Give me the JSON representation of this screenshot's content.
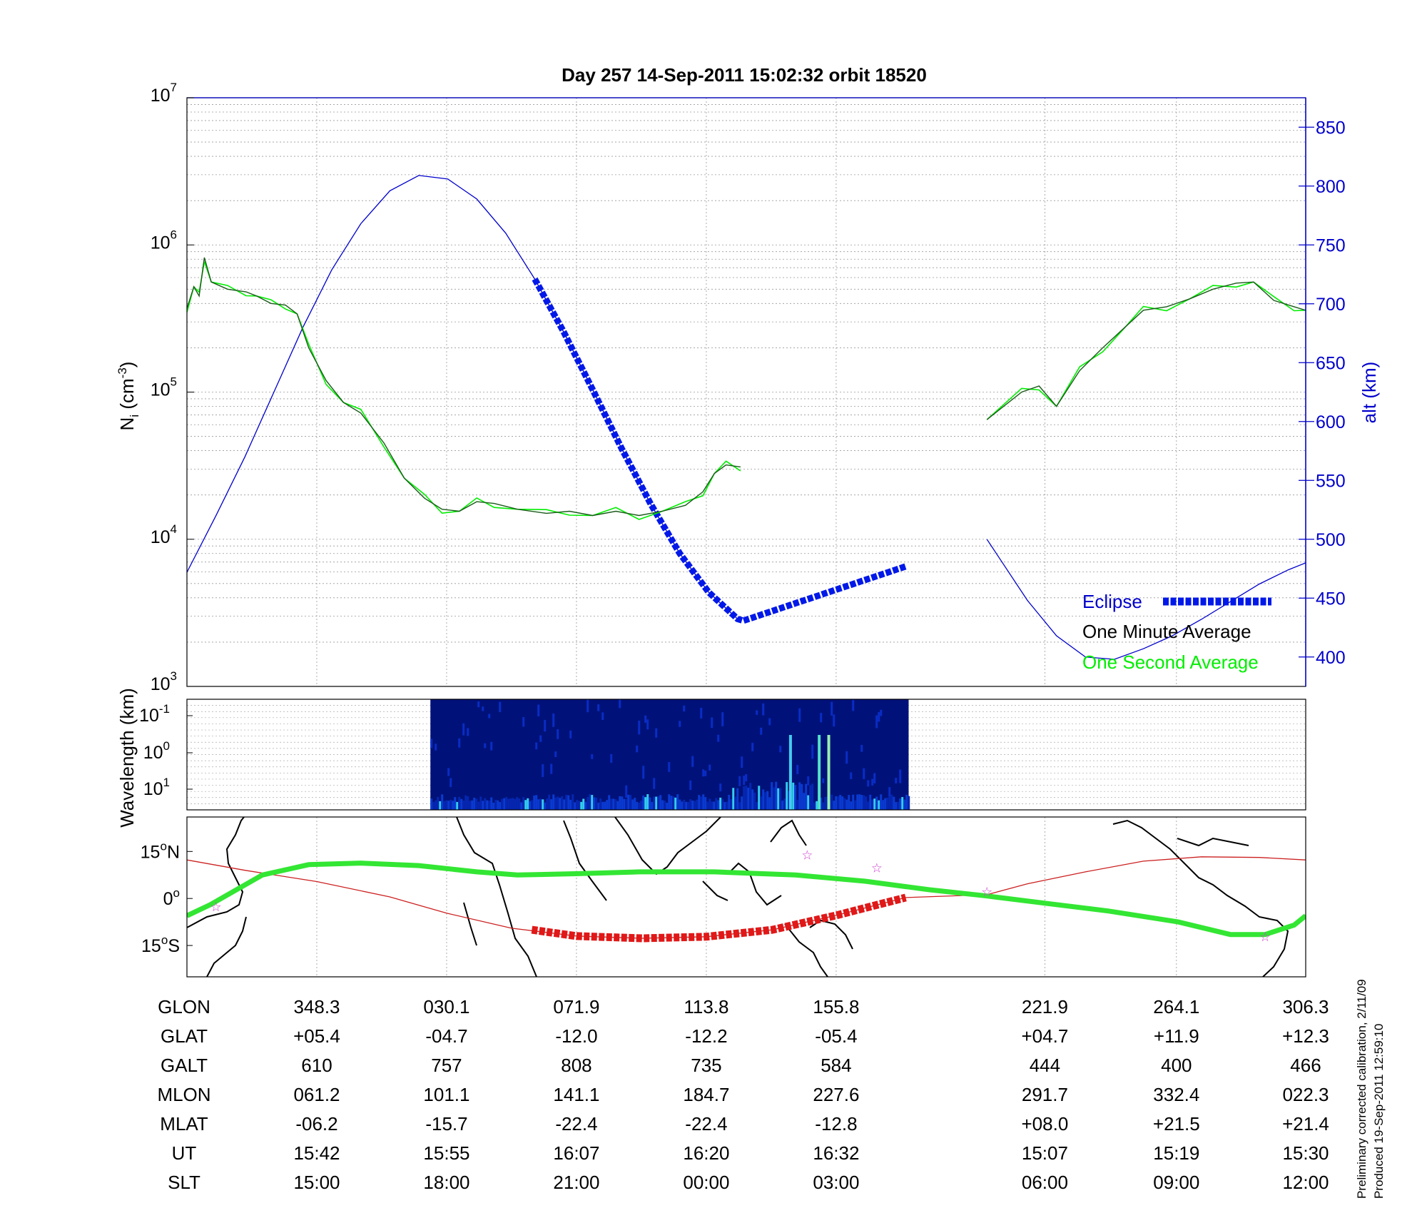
{
  "title": "Day 257  14-Sep-2011 15:02:32   orbit 18520",
  "colors": {
    "altitude": "#0000cc",
    "one_minute": "#1a5a1a",
    "one_second": "#00ee00",
    "eclipse": "#0018e8",
    "ground_track": "#cc2020",
    "magnetic_equator": "#33e633",
    "stars": "#cc44cc"
  },
  "chart_data": [
    {
      "id": "density_altitude",
      "type": "line",
      "ylabel_left": {
        "base": "N",
        "sub": "i",
        "rest": " (cm",
        "sup": "-3",
        "close": ")"
      },
      "ylabel_right": "alt (km)",
      "y_left_scale": "log",
      "y_left_ticks": [
        {
          "base": "10",
          "exp": "3"
        },
        {
          "base": "10",
          "exp": "4"
        },
        {
          "base": "10",
          "exp": "5"
        },
        {
          "base": "10",
          "exp": "6"
        },
        {
          "base": "10",
          "exp": "7"
        }
      ],
      "ylim_left": [
        1000,
        10000000
      ],
      "ylim_right": [
        375,
        875
      ],
      "y_right_ticks": [
        "400",
        "450",
        "500",
        "550",
        "600",
        "650",
        "700",
        "750",
        "800",
        "850"
      ],
      "grid": true,
      "x_gap": [
        15.93,
        15.99
      ],
      "series": [
        {
          "name": "One Minute Average",
          "kind": "density",
          "points": [
            [
              0.0,
              370000
            ],
            [
              0.12,
              520000
            ],
            [
              0.21,
              450000
            ],
            [
              0.3,
              820000
            ],
            [
              0.42,
              560000
            ],
            [
              0.7,
              500000
            ],
            [
              1.02,
              480000
            ],
            [
              1.2,
              450000
            ],
            [
              1.45,
              400000
            ],
            [
              1.7,
              390000
            ],
            [
              1.9,
              340000
            ],
            [
              2.1,
              200000
            ],
            [
              2.4,
              120000
            ],
            [
              2.7,
              85000
            ],
            [
              3.0,
              72000
            ],
            [
              3.4,
              45000
            ],
            [
              3.75,
              26000
            ],
            [
              4.1,
              19000
            ],
            [
              4.4,
              16000
            ],
            [
              4.7,
              15500
            ],
            [
              5.0,
              18000
            ],
            [
              5.3,
              17500
            ],
            [
              5.7,
              16000
            ],
            [
              6.2,
              15000
            ],
            [
              6.6,
              15500
            ],
            [
              7.0,
              14500
            ],
            [
              7.4,
              15500
            ],
            [
              7.8,
              14500
            ],
            [
              8.2,
              15500
            ],
            [
              8.6,
              17000
            ],
            [
              8.9,
              21000
            ],
            [
              9.1,
              28000
            ],
            [
              9.3,
              32000
            ],
            [
              9.55,
              31000
            ],
            [
              13.8,
              65000
            ],
            [
              14.4,
              100000
            ],
            [
              14.7,
              110000
            ],
            [
              15.0,
              80000
            ],
            [
              15.4,
              140000
            ],
            [
              15.8,
              200000
            ],
            [
              16.2,
              280000
            ],
            [
              16.5,
              360000
            ],
            [
              16.9,
              380000
            ],
            [
              17.3,
              430000
            ],
            [
              17.7,
              500000
            ],
            [
              18.1,
              550000
            ],
            [
              18.4,
              560000
            ],
            [
              18.75,
              420000
            ],
            [
              19.1,
              380000
            ],
            [
              19.3,
              360000
            ]
          ]
        },
        {
          "name": "Altitude",
          "kind": "altitude",
          "points": [
            [
              0.0,
              472
            ],
            [
              0.5,
              520
            ],
            [
              1.0,
              570
            ],
            [
              1.5,
              625
            ],
            [
              2.0,
              680
            ],
            [
              2.5,
              729
            ],
            [
              3.0,
              768
            ],
            [
              3.5,
              796
            ],
            [
              4.0,
              809
            ],
            [
              4.5,
              806
            ],
            [
              5.0,
              789
            ],
            [
              5.5,
              760
            ],
            [
              6.0,
              721
            ],
            [
              6.5,
              676
            ],
            [
              7.0,
              627
            ],
            [
              7.5,
              577
            ],
            [
              8.0,
              530
            ],
            [
              8.5,
              488
            ],
            [
              9.0,
              455
            ],
            [
              9.55,
              430
            ],
            [
              13.8,
              500
            ],
            [
              14.5,
              448
            ],
            [
              15.0,
              418
            ],
            [
              15.5,
              400
            ],
            [
              16.0,
              398
            ],
            [
              16.5,
              407
            ],
            [
              17.0,
              418
            ],
            [
              17.5,
              432
            ],
            [
              18.0,
              447
            ],
            [
              18.5,
              462
            ],
            [
              19.0,
              474
            ],
            [
              19.3,
              480
            ]
          ]
        }
      ],
      "eclipse_range": [
        5.95,
        12.45
      ],
      "legend": {
        "eclipse": "Eclipse",
        "one_minute": "One Minute Average",
        "one_second": "One Second Average",
        "placement": "bottom-right"
      }
    },
    {
      "id": "wavelength_spectrogram",
      "type": "heatmap",
      "ylabel": "Wavelength (km)",
      "y_ticks": [
        {
          "base": "10",
          "exp": "-1"
        },
        {
          "base": "10",
          "exp": "0"
        },
        {
          "base": "10",
          "exp": "1"
        }
      ],
      "data_range": [
        4.2,
        12.45
      ]
    },
    {
      "id": "ground_track_map",
      "type": "line",
      "y_ticks": [
        {
          "base": "15",
          "deg": "o",
          "suffix": "N"
        },
        {
          "base": "0",
          "deg": "o",
          "suffix": ""
        },
        {
          "base": "15",
          "deg": "o",
          "suffix": "S"
        }
      ],
      "ylim": [
        -25,
        26
      ],
      "series": [
        {
          "name": "ground track",
          "points": [
            [
              0.0,
              12.3
            ],
            [
              1.0,
              9.0
            ],
            [
              2.24,
              5.4
            ],
            [
              3.5,
              0.5
            ],
            [
              4.48,
              -4.7
            ],
            [
              5.6,
              -9.5
            ],
            [
              6.72,
              -12.0
            ],
            [
              7.85,
              -12.7
            ],
            [
              8.96,
              -12.2
            ],
            [
              10.1,
              -10.0
            ],
            [
              11.2,
              -5.4
            ],
            [
              12.4,
              0.3
            ],
            [
              13.8,
              1.2
            ],
            [
              14.5,
              4.7
            ],
            [
              15.5,
              8.5
            ],
            [
              16.5,
              11.9
            ],
            [
              17.5,
              13.3
            ],
            [
              18.5,
              13.1
            ],
            [
              19.3,
              12.3
            ]
          ]
        },
        {
          "name": "magnetic equator",
          "points": [
            [
              0.0,
              -5.5
            ],
            [
              0.4,
              -2.0
            ],
            [
              1.3,
              7.5
            ],
            [
              2.1,
              10.8
            ],
            [
              3.0,
              11.3
            ],
            [
              4.0,
              10.5
            ],
            [
              5.0,
              8.5
            ],
            [
              5.7,
              7.5
            ],
            [
              6.7,
              7.9
            ],
            [
              7.8,
              8.5
            ],
            [
              9.1,
              8.5
            ],
            [
              10.5,
              7.5
            ],
            [
              11.7,
              5.5
            ],
            [
              12.8,
              2.8
            ],
            [
              13.8,
              0.8
            ],
            [
              14.8,
              -1.5
            ],
            [
              15.9,
              -4.0
            ],
            [
              17.1,
              -7.5
            ],
            [
              18.0,
              -11.5
            ],
            [
              18.6,
              -11.5
            ],
            [
              19.1,
              -8.5
            ],
            [
              19.3,
              -5.5
            ]
          ]
        },
        {
          "name": "eclipse track",
          "points": [
            [
              5.95,
              -10.0
            ],
            [
              6.72,
              -12.0
            ],
            [
              7.85,
              -12.7
            ],
            [
              8.96,
              -12.2
            ],
            [
              10.1,
              -10.0
            ],
            [
              11.2,
              -5.4
            ],
            [
              12.4,
              0.3
            ]
          ]
        }
      ],
      "stars": [
        [
          0.5,
          -2.5
        ],
        [
          10.7,
          14.0
        ],
        [
          11.9,
          10.0
        ],
        [
          13.8,
          2.3
        ],
        [
          18.6,
          -12.0
        ]
      ]
    }
  ],
  "table": {
    "row_labels": [
      "GLON",
      "GLAT",
      "GALT",
      "MLON",
      "MLAT",
      "UT",
      "SLT"
    ],
    "column_positions": [
      2.24,
      4.48,
      6.72,
      8.96,
      11.2,
      14.8,
      17.07,
      19.3
    ],
    "columns": [
      [
        "348.3",
        "+05.4",
        "610",
        "061.2",
        "-06.2",
        "15:42",
        "15:00"
      ],
      [
        "030.1",
        "-04.7",
        "757",
        "101.1",
        "-15.7",
        "15:55",
        "18:00"
      ],
      [
        "071.9",
        "-12.0",
        "808",
        "141.1",
        "-22.4",
        "16:07",
        "21:00"
      ],
      [
        "113.8",
        "-12.2",
        "735",
        "184.7",
        "-22.4",
        "16:20",
        "00:00"
      ],
      [
        "155.8",
        "-05.4",
        "584",
        "227.6",
        "-12.8",
        "16:32",
        "03:00"
      ],
      [
        "221.9",
        "+04.7",
        "444",
        "291.7",
        "+08.0",
        "15:07",
        "06:00"
      ],
      [
        "264.1",
        "+11.9",
        "400",
        "332.4",
        "+21.5",
        "15:19",
        "09:00"
      ],
      [
        "306.3",
        "+12.3",
        "466",
        "022.3",
        "+21.4",
        "15:30",
        "12:00"
      ]
    ]
  },
  "footnotes": [
    "Preliminary corrected calibration, 2/11/09",
    "Produced 19-Sep-2011 12:59:10"
  ]
}
